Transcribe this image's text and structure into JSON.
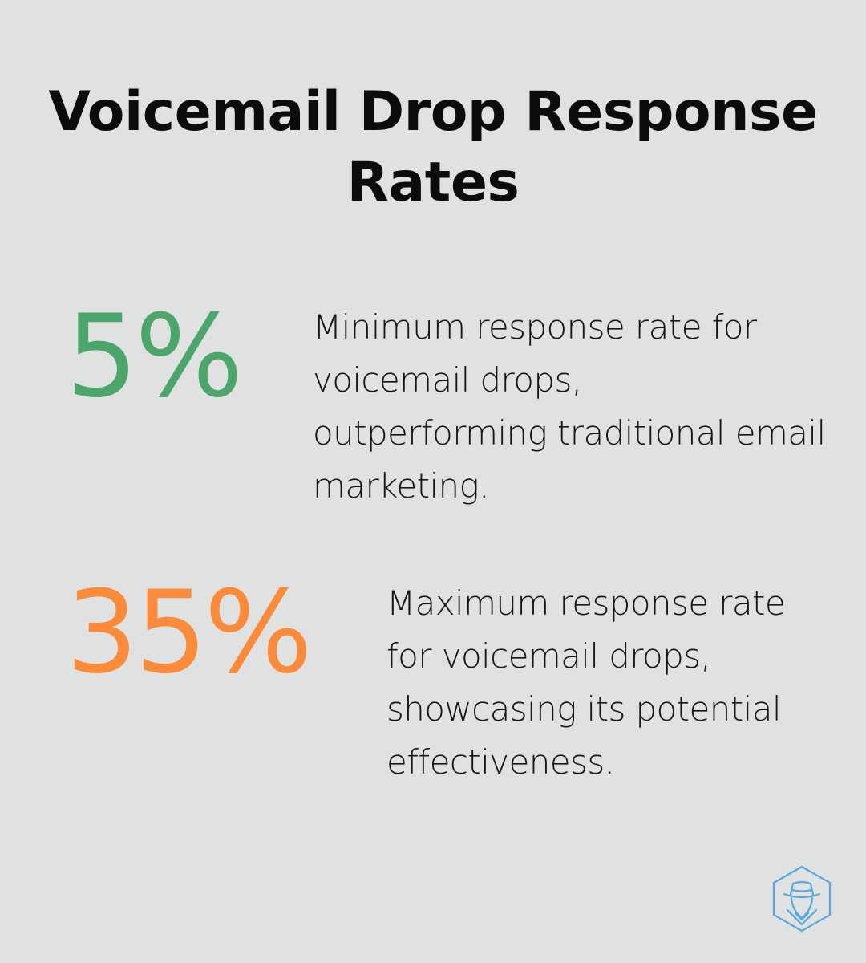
{
  "title": "Voicemail Drop Response Rates",
  "stats": [
    {
      "value": "5%",
      "description": "Minimum response rate for voicemail drops, outperforming traditional email marketing.",
      "color": "#4ca56b"
    },
    {
      "value": "35%",
      "description": "Maximum response rate for voicemail drops, showcasing its potential effectiveness.",
      "color": "#f98b3a"
    }
  ],
  "logo": {
    "icon": "spy-hexagon-icon",
    "color": "#5aa9dd"
  }
}
